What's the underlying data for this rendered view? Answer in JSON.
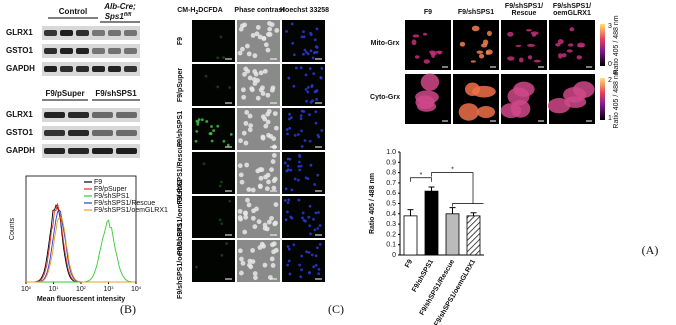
{
  "blot_top": {
    "header": [
      "Control"
    ],
    "genotype": {
      "prefix": "Alb-Cre;",
      "gene": "Sps1",
      "sup": "fl/fl"
    },
    "rows": [
      "GLRX1",
      "GSTO1",
      "GAPDH"
    ]
  },
  "blot_bottom": {
    "header": [
      "F9/pSuper",
      "F9/shSPS1"
    ],
    "rows": [
      "GLRX1",
      "GSTO1",
      "GAPDH"
    ]
  },
  "flow": {
    "y_label": "Counts",
    "x_label": "Mean fluorescent intensity",
    "x_ticks": [
      {
        "base": "10",
        "exp": "0"
      },
      {
        "base": "10",
        "exp": "1"
      },
      {
        "base": "10",
        "exp": "2"
      },
      {
        "base": "10",
        "exp": "3"
      },
      {
        "base": "10",
        "exp": "4"
      }
    ],
    "legend": [
      {
        "name": "F9",
        "color": "#000000"
      },
      {
        "name": "F9/pSuper",
        "color": "#e0302a"
      },
      {
        "name": "F9/shSPS1",
        "color": "#33cc33"
      },
      {
        "name": "F9/shSPS1/Rescue",
        "color": "#2a3cd0"
      },
      {
        "name": "F9/shSPS1/oemGLRX1",
        "color": "#e8a020"
      }
    ]
  },
  "panel_c": {
    "dye": {
      "main": "CM-H",
      "sub": "2",
      "rest": "DCFDA"
    },
    "columns": [
      "Phase contrast",
      "Hoechst 33258"
    ],
    "rows": [
      "F9",
      "F9/pSuper",
      "F9/shSPS1",
      "F9/shSPS1/Rescue",
      "F9/shSPS1/oemGLRX1",
      "F9/shSPS1/oemGLRX1"
    ]
  },
  "panel_a_images": {
    "columns": [
      [
        "F9"
      ],
      [
        "F9/shSPS1"
      ],
      [
        "F9/shSPS1/",
        "Rescue"
      ],
      [
        "F9/shSPS1/",
        "oemGLRX1"
      ]
    ],
    "rows": [
      "Mito-Grx",
      "Cyto-Grx"
    ],
    "colorbar_label": "Ratio 405 / 488 nm",
    "colorbar_ticks": [
      [
        "3",
        "0"
      ],
      [
        "2",
        "1"
      ]
    ]
  },
  "chart_data": {
    "type": "bar",
    "y_label": "Ratio 405 / 488 nm",
    "categories": [
      "F9",
      "F9/shSPS1",
      "F9/shSPS1/Rescue",
      "F9/shSPS1/oemGLRX1"
    ],
    "values": [
      0.38,
      0.62,
      0.4,
      0.38
    ],
    "errors": [
      0.06,
      0.04,
      0.06,
      0.03
    ],
    "colors": [
      "#ffffff",
      "#000000",
      "#bbbbbb",
      "#ffffff"
    ],
    "hatched": [
      false,
      false,
      false,
      true
    ],
    "ylim": [
      0,
      1
    ],
    "yticks": [
      0,
      0.1,
      0.2,
      0.3,
      0.4,
      0.5,
      0.6,
      0.7,
      0.8,
      0.9,
      {
        "value": 1,
        "label": "1.0"
      }
    ],
    "significance": [
      "*",
      "*"
    ]
  },
  "labels": {
    "a": "(A)",
    "b": "(B)",
    "c": "(C)"
  }
}
